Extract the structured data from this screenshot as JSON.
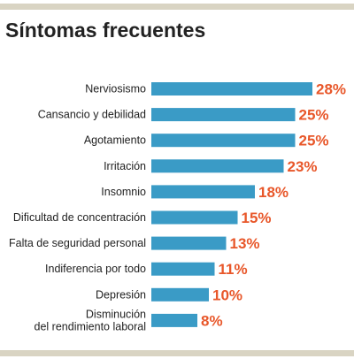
{
  "title": "Síntomas frecuentes",
  "colors": {
    "bar": "#3a9bc6",
    "value_text": "#e8572a",
    "rule": "#d9d4c3"
  },
  "chart_data": {
    "type": "bar",
    "orientation": "horizontal",
    "title": "Síntomas frecuentes",
    "categories": [
      "Nerviosismo",
      "Cansancio y debilidad",
      "Agotamiento",
      "Irritación",
      "Insomnio",
      "Dificultad de concentración",
      "Falta de seguridad personal",
      "Indiferencia por todo",
      "Depresión",
      "Disminución del rendimiento laboral"
    ],
    "category_lines": [
      [
        "Nerviosismo"
      ],
      [
        "Cansancio y debilidad"
      ],
      [
        "Agotamiento"
      ],
      [
        "Irritación"
      ],
      [
        "Insomnio"
      ],
      [
        "Dificultad de concentración"
      ],
      [
        "Falta de seguridad personal"
      ],
      [
        "Indiferencia por todo"
      ],
      [
        "Depresión"
      ],
      [
        "Disminución",
        "del rendimiento laboral"
      ]
    ],
    "values": [
      28,
      25,
      25,
      23,
      18,
      15,
      13,
      11,
      10,
      8
    ],
    "value_labels": [
      "28%",
      "25%",
      "25%",
      "23%",
      "18%",
      "15%",
      "13%",
      "11%",
      "10%",
      "8%"
    ],
    "xlim": [
      0,
      28
    ],
    "grid": false,
    "legend": false
  }
}
